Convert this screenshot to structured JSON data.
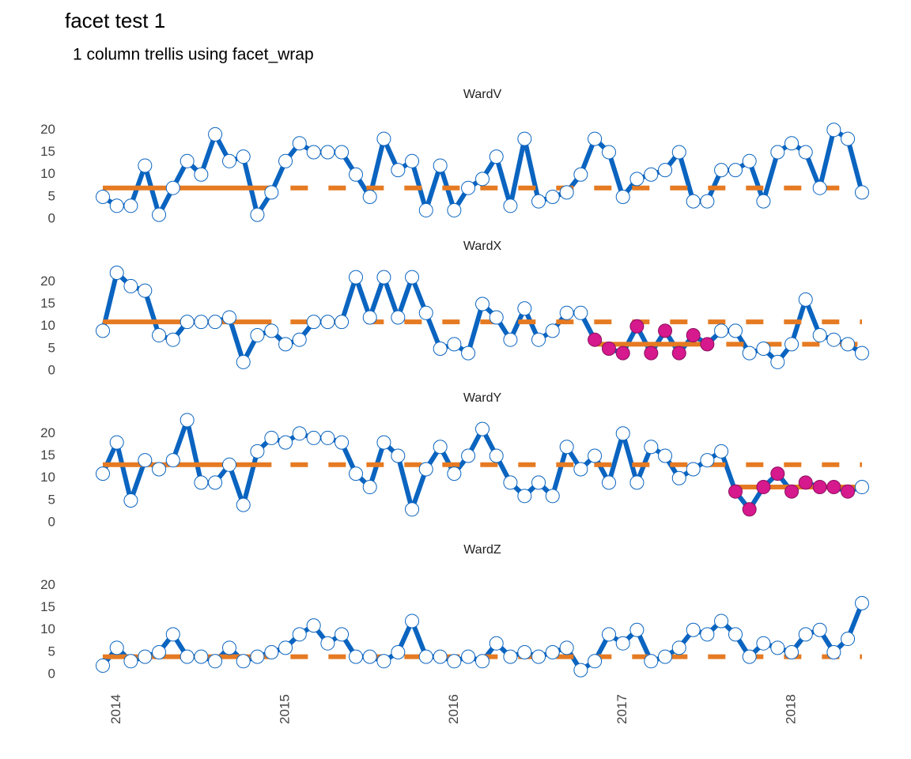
{
  "chart_data": {
    "type": "line",
    "title": "facet test 1",
    "subtitle": "1 column trellis using facet_wrap",
    "x": [
      2013.917,
      2014,
      2014.083,
      2014.167,
      2014.25,
      2014.333,
      2014.417,
      2014.5,
      2014.583,
      2014.667,
      2014.75,
      2014.833,
      2014.917,
      2015,
      2015.083,
      2015.167,
      2015.25,
      2015.333,
      2015.417,
      2015.5,
      2015.583,
      2015.667,
      2015.75,
      2015.833,
      2015.917,
      2016,
      2016.083,
      2016.167,
      2016.25,
      2016.333,
      2016.417,
      2016.5,
      2016.583,
      2016.667,
      2016.75,
      2016.833,
      2016.917,
      2017,
      2017.083,
      2017.167,
      2017.25,
      2017.333,
      2017.417,
      2017.5,
      2017.583,
      2017.667,
      2017.75,
      2017.833,
      2017.917,
      2018,
      2018.083,
      2018.167,
      2018.25,
      2018.333,
      2018.417
    ],
    "xlim": [
      2013.917,
      2018.417
    ],
    "xticks": [
      2014,
      2015,
      2016,
      2017,
      2018
    ],
    "ylim": [
      -1.2,
      24.3
    ],
    "yticks": [
      0,
      5,
      10,
      15,
      20
    ],
    "grid": false,
    "color": "#0a64c0",
    "baseline_color": "#e67a22",
    "highlight_color": "#d6198c",
    "facets": [
      {
        "title": "WardV",
        "values": [
          5,
          3,
          3,
          12,
          1,
          7,
          13,
          10,
          19,
          13,
          14,
          1,
          6,
          13,
          17,
          15,
          15,
          15,
          10,
          5,
          18,
          11,
          13,
          2,
          12,
          2,
          7,
          9,
          14,
          3,
          18,
          4,
          5,
          6,
          10,
          18,
          15,
          5,
          9,
          10,
          11,
          15,
          4,
          4,
          11,
          11,
          13,
          4,
          15,
          17,
          15,
          7,
          20,
          18,
          6
        ],
        "baselines": [
          {
            "value": 7,
            "x": [
              2013.917,
              2014.917,
              2018.417
            ]
          }
        ]
      },
      {
        "title": "WardX",
        "values": [
          9,
          22,
          19,
          18,
          8,
          7,
          11,
          11,
          11,
          12,
          2,
          8,
          9,
          6,
          7,
          11,
          11,
          11,
          21,
          12,
          21,
          12,
          21,
          13,
          5,
          6,
          4,
          15,
          12,
          7,
          14,
          7,
          9,
          13,
          13,
          7,
          5,
          4,
          10,
          4,
          9,
          4,
          8,
          6,
          9,
          9,
          4,
          5,
          2,
          6,
          16,
          8,
          7,
          6,
          4
        ],
        "baselines": [
          {
            "value": 11,
            "x": [
              2013.917,
              2014.917,
              2018.417
            ]
          },
          {
            "value": 6,
            "x": [
              2016.833,
              2017.5,
              2018.417
            ]
          }
        ],
        "highlight_x": [
          2016.833,
          2017.5
        ]
      },
      {
        "title": "WardY",
        "values": [
          11,
          18,
          5,
          14,
          12,
          14,
          23,
          9,
          9,
          13,
          4,
          16,
          19,
          18,
          20,
          19,
          19,
          18,
          11,
          8,
          18,
          15,
          3,
          12,
          17,
          11,
          15,
          21,
          15,
          9,
          6,
          9,
          6,
          17,
          12,
          15,
          9,
          20,
          9,
          17,
          15,
          10,
          12,
          14,
          16,
          7,
          3,
          8,
          11,
          7,
          9,
          8,
          8,
          7,
          8
        ],
        "baselines": [
          {
            "value": 13,
            "x": [
              2013.917,
              2014.917,
              2018.417
            ]
          },
          {
            "value": 8,
            "x": [
              2017.667,
              2018.417,
              2018.417
            ]
          }
        ],
        "highlight_x": [
          2017.667,
          2018.333
        ]
      },
      {
        "title": "WardZ",
        "values": [
          2,
          6,
          3,
          4,
          5,
          9,
          4,
          4,
          3,
          6,
          3,
          4,
          5,
          6,
          9,
          11,
          7,
          9,
          4,
          4,
          3,
          5,
          12,
          4,
          4,
          3,
          4,
          3,
          7,
          4,
          5,
          4,
          5,
          6,
          1,
          3,
          9,
          7,
          10,
          3,
          4,
          6,
          10,
          9,
          12,
          9,
          4,
          7,
          6,
          5,
          9,
          10,
          5,
          8,
          16
        ],
        "baselines": [
          {
            "value": 4,
            "x": [
              2013.917,
              2014.917,
              2018.417
            ]
          }
        ]
      }
    ]
  }
}
